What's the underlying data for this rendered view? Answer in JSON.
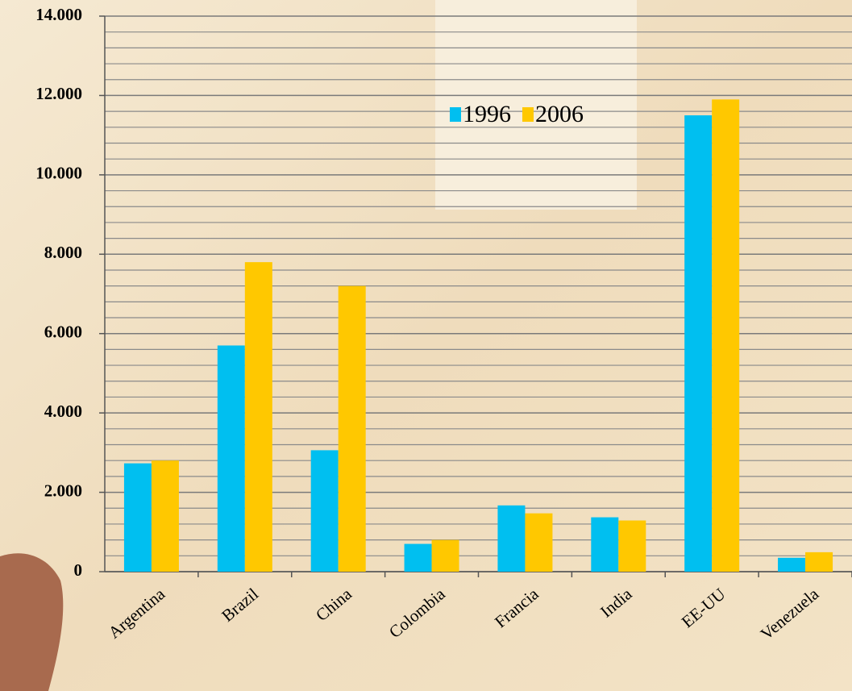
{
  "chart_data": {
    "type": "bar",
    "categories": [
      "Argentina",
      "Brazil",
      "China",
      "Colombia",
      "Francia",
      "India",
      "EE-UU",
      "Venezuela"
    ],
    "series": [
      {
        "name": "1996",
        "color": "#00bff0",
        "values": [
          2730,
          5700,
          3060,
          700,
          1670,
          1370,
          11500,
          350
        ]
      },
      {
        "name": "2006",
        "color": "#ffc800",
        "values": [
          2800,
          7800,
          7200,
          800,
          1470,
          1290,
          11900,
          490
        ]
      }
    ],
    "ylim": [
      0,
      14000
    ],
    "yticks": [
      0,
      {
        "value": 2000,
        "label": "2.000"
      },
      {
        "value": 4000,
        "label": "4.000"
      },
      {
        "value": 6000,
        "label": "6.000"
      },
      {
        "value": 8000,
        "label": "8.000"
      },
      {
        "value": 10000,
        "label": "10.000"
      },
      {
        "value": 12000,
        "label": "12.000"
      },
      {
        "value": 14000,
        "label": "14.000"
      }
    ],
    "grid": true
  }
}
